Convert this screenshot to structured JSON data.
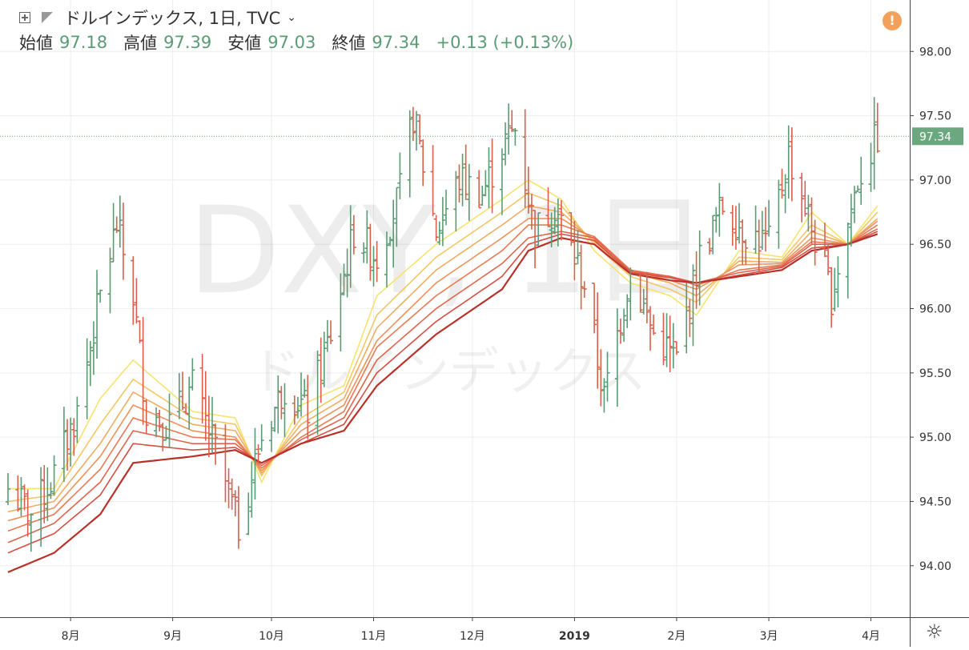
{
  "header": {
    "title": "ドルインデックス, 1日, TVC",
    "ohlc": [
      {
        "label": "始値",
        "value": "97.18"
      },
      {
        "label": "高値",
        "value": "97.39"
      },
      {
        "label": "安値",
        "value": "97.03"
      },
      {
        "label": "終値",
        "value": "97.34"
      }
    ],
    "change": "+0.13 (+0.13%)",
    "warning": "!"
  },
  "watermark": {
    "symbol": "DXY, 1日",
    "name": "ドルインデックス"
  },
  "colors": {
    "up": "#5b9b74",
    "down": "#d9604a",
    "price_label_bg": "#6ba87f",
    "grid": "#eeeeee"
  },
  "chart_data": {
    "type": "ohlc",
    "y_axis": {
      "min": 93.6,
      "max": 98.4,
      "ticks": [
        "94.00",
        "94.50",
        "95.00",
        "95.50",
        "96.00",
        "96.50",
        "97.00",
        "97.50",
        "98.00"
      ]
    },
    "x_axis": {
      "start": "2018-07-13",
      "end": "2019-04-05",
      "ticks": [
        {
          "date": "2018-08-01",
          "label": "8月",
          "bold": false
        },
        {
          "date": "2018-09-01",
          "label": "9月",
          "bold": false
        },
        {
          "date": "2018-10-01",
          "label": "10月",
          "bold": false
        },
        {
          "date": "2018-11-01",
          "label": "11月",
          "bold": false
        },
        {
          "date": "2018-12-01",
          "label": "12月",
          "bold": false
        },
        {
          "date": "2019-01-01",
          "label": "2019",
          "bold": true
        },
        {
          "date": "2019-02-01",
          "label": "2月",
          "bold": false
        },
        {
          "date": "2019-03-01",
          "label": "3月",
          "bold": false
        },
        {
          "date": "2019-04-01",
          "label": "4月",
          "bold": false
        }
      ]
    },
    "last_price": "97.34",
    "close_anchors": [
      [
        "2018-07-13",
        94.6
      ],
      [
        "2018-07-20",
        94.4
      ],
      [
        "2018-07-27",
        94.7
      ],
      [
        "2018-08-03",
        95.2
      ],
      [
        "2018-08-10",
        96.1
      ],
      [
        "2018-08-15",
        96.65
      ],
      [
        "2018-08-20",
        96.1
      ],
      [
        "2018-08-24",
        95.2
      ],
      [
        "2018-08-31",
        95.1
      ],
      [
        "2018-09-07",
        95.4
      ],
      [
        "2018-09-14",
        94.9
      ],
      [
        "2018-09-21",
        94.3
      ],
      [
        "2018-09-28",
        95.0
      ],
      [
        "2018-10-05",
        95.4
      ],
      [
        "2018-10-12",
        95.2
      ],
      [
        "2018-10-19",
        95.8
      ],
      [
        "2018-10-26",
        96.6
      ],
      [
        "2018-11-02",
        96.4
      ],
      [
        "2018-11-09",
        96.9
      ],
      [
        "2018-11-13",
        97.5
      ],
      [
        "2018-11-20",
        96.6
      ],
      [
        "2018-11-27",
        97.0
      ],
      [
        "2018-12-04",
        96.9
      ],
      [
        "2018-12-11",
        97.3
      ],
      [
        "2018-12-14",
        97.4
      ],
      [
        "2018-12-20",
        96.6
      ],
      [
        "2018-12-26",
        96.8
      ],
      [
        "2019-01-04",
        96.2
      ],
      [
        "2019-01-10",
        95.3
      ],
      [
        "2019-01-18",
        96.3
      ],
      [
        "2019-01-25",
        95.8
      ],
      [
        "2019-02-01",
        95.6
      ],
      [
        "2019-02-08",
        96.4
      ],
      [
        "2019-02-15",
        96.8
      ],
      [
        "2019-02-22",
        96.6
      ],
      [
        "2019-03-01",
        96.5
      ],
      [
        "2019-03-07",
        97.2
      ],
      [
        "2019-03-12",
        96.8
      ],
      [
        "2019-03-20",
        96.1
      ],
      [
        "2019-03-28",
        97.0
      ],
      [
        "2019-04-03",
        97.34
      ]
    ],
    "ribbon": {
      "colors": [
        "#f7e36e",
        "#f4c766",
        "#f0ac60",
        "#ec925a",
        "#e77a54",
        "#e0644c",
        "#d54e42",
        "#b8322a"
      ],
      "anchors": [
        [
          "2018-07-13",
          [
            94.6,
            94.5,
            94.42,
            94.35,
            94.27,
            94.18,
            94.1,
            93.95
          ]
        ],
        [
          "2018-07-27",
          [
            94.6,
            94.55,
            94.5,
            94.45,
            94.4,
            94.33,
            94.25,
            94.1
          ]
        ],
        [
          "2018-08-10",
          [
            95.3,
            95.1,
            94.95,
            94.85,
            94.75,
            94.65,
            94.55,
            94.4
          ]
        ],
        [
          "2018-08-20",
          [
            95.6,
            95.45,
            95.35,
            95.25,
            95.15,
            95.05,
            94.95,
            94.8
          ]
        ],
        [
          "2018-09-07",
          [
            95.2,
            95.15,
            95.1,
            95.05,
            95.0,
            94.95,
            94.9,
            94.85
          ]
        ],
        [
          "2018-09-20",
          [
            95.15,
            95.1,
            95.05,
            95.0,
            94.98,
            94.95,
            94.92,
            94.9
          ]
        ],
        [
          "2018-09-28",
          [
            94.65,
            94.7,
            94.72,
            94.74,
            94.76,
            94.78,
            94.8,
            94.8
          ]
        ],
        [
          "2018-10-10",
          [
            95.25,
            95.15,
            95.1,
            95.05,
            95.0,
            94.98,
            94.95,
            94.95
          ]
        ],
        [
          "2018-10-23",
          [
            95.4,
            95.35,
            95.3,
            95.25,
            95.2,
            95.15,
            95.1,
            95.05
          ]
        ],
        [
          "2018-11-02",
          [
            96.1,
            95.95,
            95.85,
            95.75,
            95.7,
            95.6,
            95.5,
            95.4
          ]
        ],
        [
          "2018-11-20",
          [
            96.5,
            96.4,
            96.3,
            96.2,
            96.1,
            96.0,
            95.9,
            95.8
          ]
        ],
        [
          "2018-12-10",
          [
            96.85,
            96.75,
            96.65,
            96.55,
            96.45,
            96.35,
            96.25,
            96.15
          ]
        ],
        [
          "2018-12-18",
          [
            97.0,
            96.9,
            96.8,
            96.7,
            96.65,
            96.55,
            96.5,
            96.45
          ]
        ],
        [
          "2018-12-28",
          [
            96.85,
            96.8,
            96.75,
            96.7,
            96.65,
            96.6,
            96.58,
            96.55
          ]
        ],
        [
          "2019-01-07",
          [
            96.45,
            96.5,
            96.52,
            96.54,
            96.56,
            96.55,
            96.53,
            96.5
          ]
        ],
        [
          "2019-01-18",
          [
            96.2,
            96.25,
            96.28,
            96.3,
            96.3,
            96.29,
            96.28,
            96.27
          ]
        ],
        [
          "2019-01-30",
          [
            96.1,
            96.15,
            96.2,
            96.22,
            96.25,
            96.25,
            96.24,
            96.22
          ]
        ],
        [
          "2019-02-07",
          [
            95.95,
            96.05,
            96.1,
            96.15,
            96.18,
            96.2,
            96.2,
            96.2
          ]
        ],
        [
          "2019-02-20",
          [
            96.45,
            96.4,
            96.37,
            96.34,
            96.3,
            96.28,
            96.26,
            96.25
          ]
        ],
        [
          "2019-03-05",
          [
            96.4,
            96.38,
            96.36,
            96.35,
            96.34,
            96.33,
            96.32,
            96.3
          ]
        ],
        [
          "2019-03-14",
          [
            96.75,
            96.65,
            96.6,
            96.55,
            96.52,
            96.5,
            96.47,
            96.45
          ]
        ],
        [
          "2019-03-25",
          [
            96.5,
            96.5,
            96.5,
            96.5,
            96.5,
            96.5,
            96.5,
            96.5
          ]
        ],
        [
          "2019-04-03",
          [
            96.8,
            96.75,
            96.7,
            96.68,
            96.65,
            96.62,
            96.6,
            96.58
          ]
        ]
      ]
    }
  }
}
